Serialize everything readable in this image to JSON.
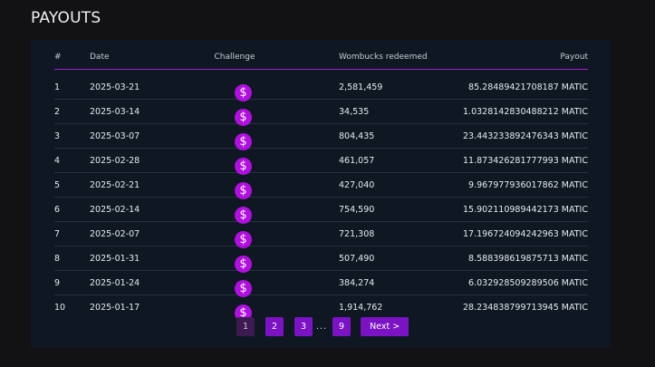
{
  "page": {
    "title": "PAYOUTS"
  },
  "table": {
    "headers": {
      "num": "#",
      "date": "Date",
      "challenge": "Challenge",
      "wombucks": "Wombucks redeemed",
      "payout": "Payout"
    },
    "challenge_icon": "dollar-coin-icon",
    "challenge_icon_glyph": "$",
    "rows": [
      {
        "num": "1",
        "date": "2025-03-21",
        "wombucks": "2,581,459",
        "payout": "85.28489421708187 MATIC"
      },
      {
        "num": "2",
        "date": "2025-03-14",
        "wombucks": "34,535",
        "payout": "1.0328142830488212 MATIC"
      },
      {
        "num": "3",
        "date": "2025-03-07",
        "wombucks": "804,435",
        "payout": "23.443233892476343 MATIC"
      },
      {
        "num": "4",
        "date": "2025-02-28",
        "wombucks": "461,057",
        "payout": "11.873426281777993 MATIC"
      },
      {
        "num": "5",
        "date": "2025-02-21",
        "wombucks": "427,040",
        "payout": "9.967977936017862 MATIC"
      },
      {
        "num": "6",
        "date": "2025-02-14",
        "wombucks": "754,590",
        "payout": "15.902110989442173 MATIC"
      },
      {
        "num": "7",
        "date": "2025-02-07",
        "wombucks": "721,308",
        "payout": "17.196724094242963 MATIC"
      },
      {
        "num": "8",
        "date": "2025-01-31",
        "wombucks": "507,490",
        "payout": "8.588398619875713 MATIC"
      },
      {
        "num": "9",
        "date": "2025-01-24",
        "wombucks": "384,274",
        "payout": "6.032928509289506 MATIC"
      },
      {
        "num": "10",
        "date": "2025-01-17",
        "wombucks": "1,914,762",
        "payout": "28.234838799713945 MATIC"
      }
    ]
  },
  "pagination": {
    "pages": [
      "1",
      "2",
      "3"
    ],
    "current_page": "1",
    "ellipsis": "...",
    "last_page": "9",
    "next_label": "Next >"
  },
  "colors": {
    "accent": "#b00fe0",
    "button": "#7b12c4",
    "panel": "#0f1822",
    "background": "#121214"
  }
}
